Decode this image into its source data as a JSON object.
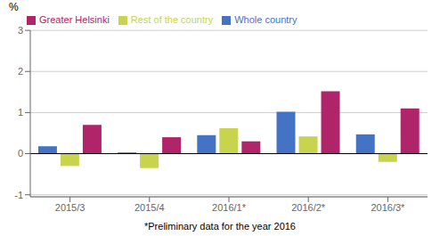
{
  "chart_data": {
    "type": "bar",
    "categories": [
      "2015/3",
      "2015/4",
      "2016/1*",
      "2016/2*",
      "2016/3*"
    ],
    "series": [
      {
        "name": "Whole country",
        "color": "#4472C4",
        "values": [
          0.18,
          0.03,
          0.45,
          1.02,
          0.47
        ]
      },
      {
        "name": "Rest of the country",
        "color": "#C8D44E",
        "values": [
          -0.3,
          -0.35,
          0.62,
          0.42,
          -0.2
        ]
      },
      {
        "name": "Greater Helsinki",
        "color": "#B0246A",
        "values": [
          0.7,
          0.4,
          0.3,
          1.52,
          1.1
        ]
      }
    ],
    "ylim": [
      -1.05,
      3.0
    ],
    "yticks": [
      -1,
      0,
      1,
      2,
      3
    ],
    "y_label": "%",
    "annotations": [
      "*Preliminary data for the year 2016"
    ],
    "grid": true,
    "legend": "upper left"
  }
}
